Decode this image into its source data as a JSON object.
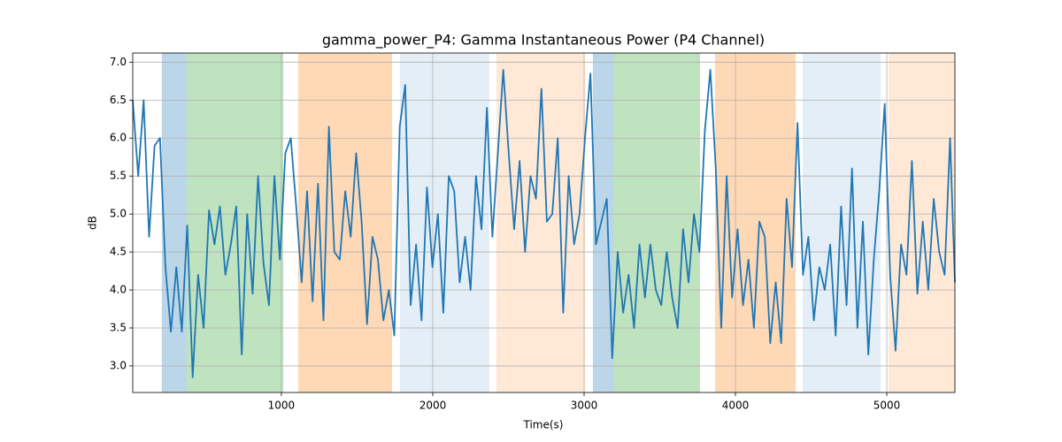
{
  "chart_data": {
    "type": "line",
    "title": "gamma_power_P4: Gamma Instantaneous Power (P4 Channel)",
    "x_label": "Time(s)",
    "y_label": "dB",
    "x": [
      18,
      54,
      90,
      126,
      162,
      198,
      234,
      270,
      306,
      342,
      378,
      414,
      450,
      486,
      522,
      558,
      594,
      630,
      666,
      702,
      738,
      774,
      810,
      846,
      882,
      918,
      954,
      990,
      1026,
      1062,
      1098,
      1134,
      1170,
      1206,
      1242,
      1278,
      1314,
      1350,
      1386,
      1422,
      1458,
      1494,
      1530,
      1566,
      1602,
      1638,
      1674,
      1710,
      1746,
      1782,
      1818,
      1854,
      1890,
      1926,
      1962,
      1998,
      2034,
      2070,
      2106,
      2142,
      2178,
      2214,
      2250,
      2286,
      2322,
      2358,
      2394,
      2430,
      2466,
      2502,
      2538,
      2574,
      2610,
      2646,
      2682,
      2718,
      2754,
      2790,
      2826,
      2862,
      2898,
      2934,
      2970,
      3006,
      3042,
      3078,
      3114,
      3150,
      3186,
      3222,
      3258,
      3294,
      3330,
      3366,
      3402,
      3438,
      3474,
      3510,
      3546,
      3582,
      3618,
      3654,
      3690,
      3726,
      3762,
      3798,
      3834,
      3870,
      3906,
      3942,
      3978,
      4014,
      4050,
      4086,
      4122,
      4158,
      4194,
      4230,
      4266,
      4302,
      4338,
      4374,
      4410,
      4446,
      4482,
      4518,
      4554,
      4590,
      4626,
      4662,
      4698,
      4734,
      4770,
      4806,
      4842,
      4878,
      4914,
      4950,
      4986,
      5022,
      5058,
      5094,
      5130,
      5166,
      5202,
      5238,
      5274,
      5310,
      5346,
      5382,
      5418,
      5450
    ],
    "series": [
      {
        "color": "#1f77b4",
        "values": [
          6.5,
          5.5,
          6.5,
          4.7,
          5.9,
          6.0,
          4.3,
          3.45,
          4.3,
          3.45,
          4.85,
          2.85,
          4.2,
          3.5,
          5.05,
          4.6,
          5.1,
          4.2,
          4.6,
          5.1,
          3.15,
          5.0,
          3.95,
          5.5,
          4.35,
          3.8,
          5.5,
          4.4,
          5.8,
          6.0,
          5.1,
          4.1,
          5.3,
          3.85,
          5.4,
          3.6,
          6.15,
          4.5,
          4.4,
          5.3,
          4.7,
          5.8,
          4.9,
          3.55,
          4.7,
          4.4,
          3.6,
          4.0,
          3.4,
          6.15,
          6.7,
          3.8,
          4.6,
          3.6,
          5.35,
          4.3,
          5.0,
          3.7,
          5.5,
          5.3,
          4.1,
          4.7,
          4.0,
          5.5,
          4.8,
          6.4,
          4.7,
          5.8,
          6.9,
          5.8,
          4.8,
          5.7,
          4.5,
          5.5,
          5.2,
          6.65,
          4.9,
          5.0,
          6.0,
          3.7,
          5.5,
          4.6,
          5.0,
          6.0,
          6.85,
          4.6,
          4.9,
          5.2,
          3.1,
          4.5,
          3.7,
          4.2,
          3.5,
          4.6,
          3.9,
          4.6,
          4.0,
          3.8,
          4.5,
          3.9,
          3.5,
          4.8,
          4.1,
          5.0,
          4.5,
          6.1,
          6.9,
          5.6,
          3.5,
          5.5,
          3.9,
          4.8,
          3.8,
          4.4,
          3.5,
          4.9,
          4.7,
          3.3,
          4.1,
          3.3,
          5.2,
          4.3,
          6.2,
          4.2,
          4.7,
          3.6,
          4.3,
          4.0,
          4.6,
          3.4,
          5.1,
          3.8,
          5.6,
          3.5,
          4.9,
          3.15,
          4.4,
          5.3,
          6.45,
          4.2,
          3.2,
          4.6,
          4.2,
          5.7,
          3.95,
          4.9,
          4.0,
          5.2,
          4.5,
          4.2,
          6.0,
          4.1
        ]
      }
    ],
    "spans": [
      {
        "start": 210,
        "end": 374,
        "color": "rgba(31,119,180,0.3)"
      },
      {
        "start": 374,
        "end": 1012,
        "color": "rgba(44,160,44,0.3)"
      },
      {
        "start": 1111,
        "end": 1731,
        "color": "rgba(255,127,14,0.3)"
      },
      {
        "start": 1784,
        "end": 2374,
        "color": "rgba(31,119,180,0.12)"
      },
      {
        "start": 2421,
        "end": 3006,
        "color": "rgba(255,127,14,0.17)"
      },
      {
        "start": 3058,
        "end": 3193,
        "color": "rgba(31,119,180,0.3)"
      },
      {
        "start": 3193,
        "end": 3766,
        "color": "rgba(44,160,44,0.3)"
      },
      {
        "start": 3865,
        "end": 4398,
        "color": "rgba(255,127,14,0.3)"
      },
      {
        "start": 4444,
        "end": 4959,
        "color": "rgba(31,119,180,0.12)"
      },
      {
        "start": 5012,
        "end": 5450,
        "color": "rgba(255,127,14,0.17)"
      }
    ],
    "xlim": [
      18,
      5450
    ],
    "ylim": [
      2.65,
      7.12
    ],
    "xticks": [
      1000,
      2000,
      3000,
      4000,
      5000
    ],
    "yticks": [
      {
        "value": 3,
        "label": "3.0"
      },
      3.5,
      {
        "value": 4,
        "label": "4.0"
      },
      4.5,
      {
        "value": 5,
        "label": "5.0"
      },
      5.5,
      {
        "value": 6,
        "label": "6.0"
      },
      6.5,
      {
        "value": 7,
        "label": "7.0"
      }
    ],
    "grid": true
  }
}
